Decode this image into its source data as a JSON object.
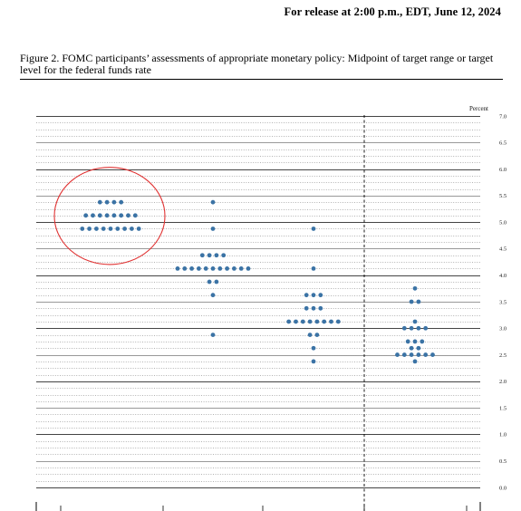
{
  "header": {
    "release": "For release at 2:00 p.m., EDT, June 12, 2024"
  },
  "figure": {
    "caption": "Figure 2.  FOMC participants’ assessments of appropriate monetary policy: Midpoint of target range or target level for the federal funds rate"
  },
  "colors": {
    "dot": "#3b73a5",
    "highlight": "#e03131"
  },
  "chart_data": {
    "type": "scatter",
    "title": "",
    "xlabel": "",
    "ylabel": "Percent",
    "ylim": [
      0,
      7.0
    ],
    "yticks": [
      "0.0",
      "0.5",
      "1.0",
      "1.5",
      "2.0",
      "2.5",
      "3.0",
      "3.5",
      "4.0",
      "4.5",
      "5.0",
      "5.5",
      "6.0",
      "6.5",
      "7.0"
    ],
    "grid": "dotted every 0.125, solid at whole and half percents",
    "categories": [
      "",
      "",
      "",
      ""
    ],
    "series": [
      {
        "values": [
          {
            "y": 5.375,
            "count": 4
          },
          {
            "y": 5.125,
            "count": 8
          },
          {
            "y": 4.875,
            "count": 9
          }
        ]
      },
      {
        "values": [
          {
            "y": 5.375,
            "count": 1
          },
          {
            "y": 4.875,
            "count": 1
          },
          {
            "y": 4.375,
            "count": 4
          },
          {
            "y": 4.125,
            "count": 11
          },
          {
            "y": 3.875,
            "count": 2
          },
          {
            "y": 3.625,
            "count": 1
          },
          {
            "y": 2.875,
            "count": 1
          }
        ]
      },
      {
        "values": [
          {
            "y": 4.875,
            "count": 1
          },
          {
            "y": 4.125,
            "count": 1
          },
          {
            "y": 3.625,
            "count": 3
          },
          {
            "y": 3.375,
            "count": 3
          },
          {
            "y": 3.125,
            "count": 8
          },
          {
            "y": 2.875,
            "count": 2
          },
          {
            "y": 2.625,
            "count": 1
          },
          {
            "y": 2.375,
            "count": 1
          }
        ]
      },
      {
        "values": [
          {
            "y": 3.75,
            "count": 1
          },
          {
            "y": 3.5,
            "count": 2
          },
          {
            "y": 3.125,
            "count": 1
          },
          {
            "y": 3.0,
            "count": 4
          },
          {
            "y": 2.75,
            "count": 3
          },
          {
            "y": 2.625,
            "count": 2
          },
          {
            "y": 2.5,
            "count": 6
          },
          {
            "y": 2.375,
            "count": 1
          }
        ]
      }
    ],
    "annotations": [
      {
        "type": "ellipse",
        "around_category": 0,
        "y_range": [
          4.5,
          5.75
        ],
        "color": "#e03131"
      }
    ]
  }
}
